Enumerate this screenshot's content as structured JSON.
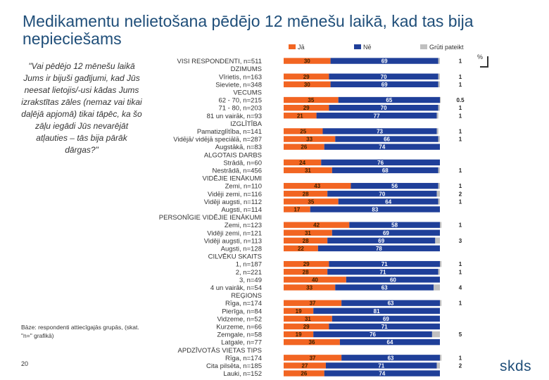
{
  "title": "Medikamentu nelietošana pēdējo 12 mēnešu laikā, kad tas bija nepieciešams",
  "question": "\"Vai pēdējo 12 mēnešu laikā Jums ir bijuši gadījumi, kad Jūs neesat lietojis/-usi kādas Jums izrakstītas zāles (nemaz vai tikai daļējā apjomā) tikai tāpēc, ka šo zāļu iegādi Jūs nevarējāt atļauties – tās bija pārāk dārgas?\"",
  "base_note": "Bāze: respondenti attiecīgajās grupās, (skat. \"n=\" grafikā)",
  "page_number": "20",
  "logo": "skds",
  "percent_mark": "%",
  "colors": {
    "ja": "#f26522",
    "ne": "#1f3f99",
    "grut": "#c0c0c0"
  },
  "chart_data": {
    "type": "bar",
    "orientation": "horizontal-stacked",
    "xlim": [
      0,
      100
    ],
    "legend": [
      "Jā",
      "Nē",
      "Grūti pateikt"
    ],
    "legend_position": "top",
    "rows": [
      {
        "kind": "cat",
        "label": "VISI RESPONDENTI, n=511",
        "ja": 30,
        "ne": 69,
        "grut": 1
      },
      {
        "kind": "group",
        "label": "DZIMUMS"
      },
      {
        "kind": "cat",
        "label": "Vīrietis, n=163",
        "ja": 29,
        "ne": 70,
        "grut": 1
      },
      {
        "kind": "cat",
        "label": "Sieviete, n=348",
        "ja": 30,
        "ne": 69,
        "grut": 1
      },
      {
        "kind": "group",
        "label": "VECUMS"
      },
      {
        "kind": "cat",
        "label": "62 - 70, n=215",
        "ja": 35,
        "ne": 65,
        "grut": 0.5
      },
      {
        "kind": "cat",
        "label": "71 - 80, n=203",
        "ja": 29,
        "ne": 70,
        "grut": 1
      },
      {
        "kind": "cat",
        "label": "81 un vairāk, n=93",
        "ja": 21,
        "ne": 77,
        "grut": 1
      },
      {
        "kind": "group",
        "label": "IZGLĪTĪBA"
      },
      {
        "kind": "cat",
        "label": "Pamatizglītība, n=141",
        "ja": 25,
        "ne": 73,
        "grut": 1
      },
      {
        "kind": "cat",
        "label": "Vidējā/ vidējā speciālā, n=287",
        "ja": 33,
        "ne": 66,
        "grut": 1
      },
      {
        "kind": "cat",
        "label": "Augstākā, n=83",
        "ja": 26,
        "ne": 74,
        "grut": null
      },
      {
        "kind": "group",
        "label": "ALGOTAIS DARBS"
      },
      {
        "kind": "cat",
        "label": "Strādā, n=60",
        "ja": 24,
        "ne": 76,
        "grut": null
      },
      {
        "kind": "cat",
        "label": "Nestrādā, n=456",
        "ja": 31,
        "ne": 68,
        "grut": 1
      },
      {
        "kind": "group",
        "label": "VIDĒJIE IENĀKUMI"
      },
      {
        "kind": "cat",
        "label": "Zemi, n=110",
        "ja": 43,
        "ne": 56,
        "grut": 1
      },
      {
        "kind": "cat",
        "label": "Vidēji zemi, n=116",
        "ja": 28,
        "ne": 70,
        "grut": 2
      },
      {
        "kind": "cat",
        "label": "Vidēji augsti, n=112",
        "ja": 35,
        "ne": 64,
        "grut": 1
      },
      {
        "kind": "cat",
        "label": "Augsti, n=114",
        "ja": 17,
        "ne": 83,
        "grut": null
      },
      {
        "kind": "group",
        "label": "PERSONĪGIE VIDĒJIE IENĀKUMI"
      },
      {
        "kind": "cat",
        "label": "Zemi, n=123",
        "ja": 42,
        "ne": 58,
        "grut": 1
      },
      {
        "kind": "cat",
        "label": "Vidēji zemi, n=121",
        "ja": 31,
        "ne": 69,
        "grut": null
      },
      {
        "kind": "cat",
        "label": "Vidēji augsti, n=113",
        "ja": 28,
        "ne": 69,
        "grut": 3
      },
      {
        "kind": "cat",
        "label": "Augsti, n=128",
        "ja": 22,
        "ne": 78,
        "grut": null
      },
      {
        "kind": "group",
        "label": "CILVĒKU SKAITS"
      },
      {
        "kind": "cat",
        "label": "1, n=187",
        "ja": 29,
        "ne": 71,
        "grut": 1
      },
      {
        "kind": "cat",
        "label": "2, n=221",
        "ja": 28,
        "ne": 71,
        "grut": 1
      },
      {
        "kind": "cat",
        "label": "3, n=49",
        "ja": 40,
        "ne": 60,
        "grut": null
      },
      {
        "kind": "cat",
        "label": "4 un vairāk, n=54",
        "ja": 33,
        "ne": 63,
        "grut": 4
      },
      {
        "kind": "group",
        "label": "REĢIONS"
      },
      {
        "kind": "cat",
        "label": "Rīga, n=174",
        "ja": 37,
        "ne": 63,
        "grut": 1
      },
      {
        "kind": "cat",
        "label": "Pierīga, n=84",
        "ja": 19,
        "ne": 81,
        "grut": null
      },
      {
        "kind": "cat",
        "label": "Vidzeme, n=52",
        "ja": 31,
        "ne": 69,
        "grut": null
      },
      {
        "kind": "cat",
        "label": "Kurzeme, n=66",
        "ja": 29,
        "ne": 71,
        "grut": null
      },
      {
        "kind": "cat",
        "label": "Zemgale, n=58",
        "ja": 19,
        "ne": 76,
        "grut": 5
      },
      {
        "kind": "cat",
        "label": "Latgale, n=77",
        "ja": 36,
        "ne": 64,
        "grut": null
      },
      {
        "kind": "group",
        "label": "APDZĪVOTĀS VIETAS TIPS"
      },
      {
        "kind": "cat",
        "label": "Rīga, n=174",
        "ja": 37,
        "ne": 63,
        "grut": 1
      },
      {
        "kind": "cat",
        "label": "Cita pilsēta, n=185",
        "ja": 27,
        "ne": 71,
        "grut": 2
      },
      {
        "kind": "cat",
        "label": "Lauki, n=152",
        "ja": 26,
        "ne": 74,
        "grut": null
      }
    ]
  }
}
